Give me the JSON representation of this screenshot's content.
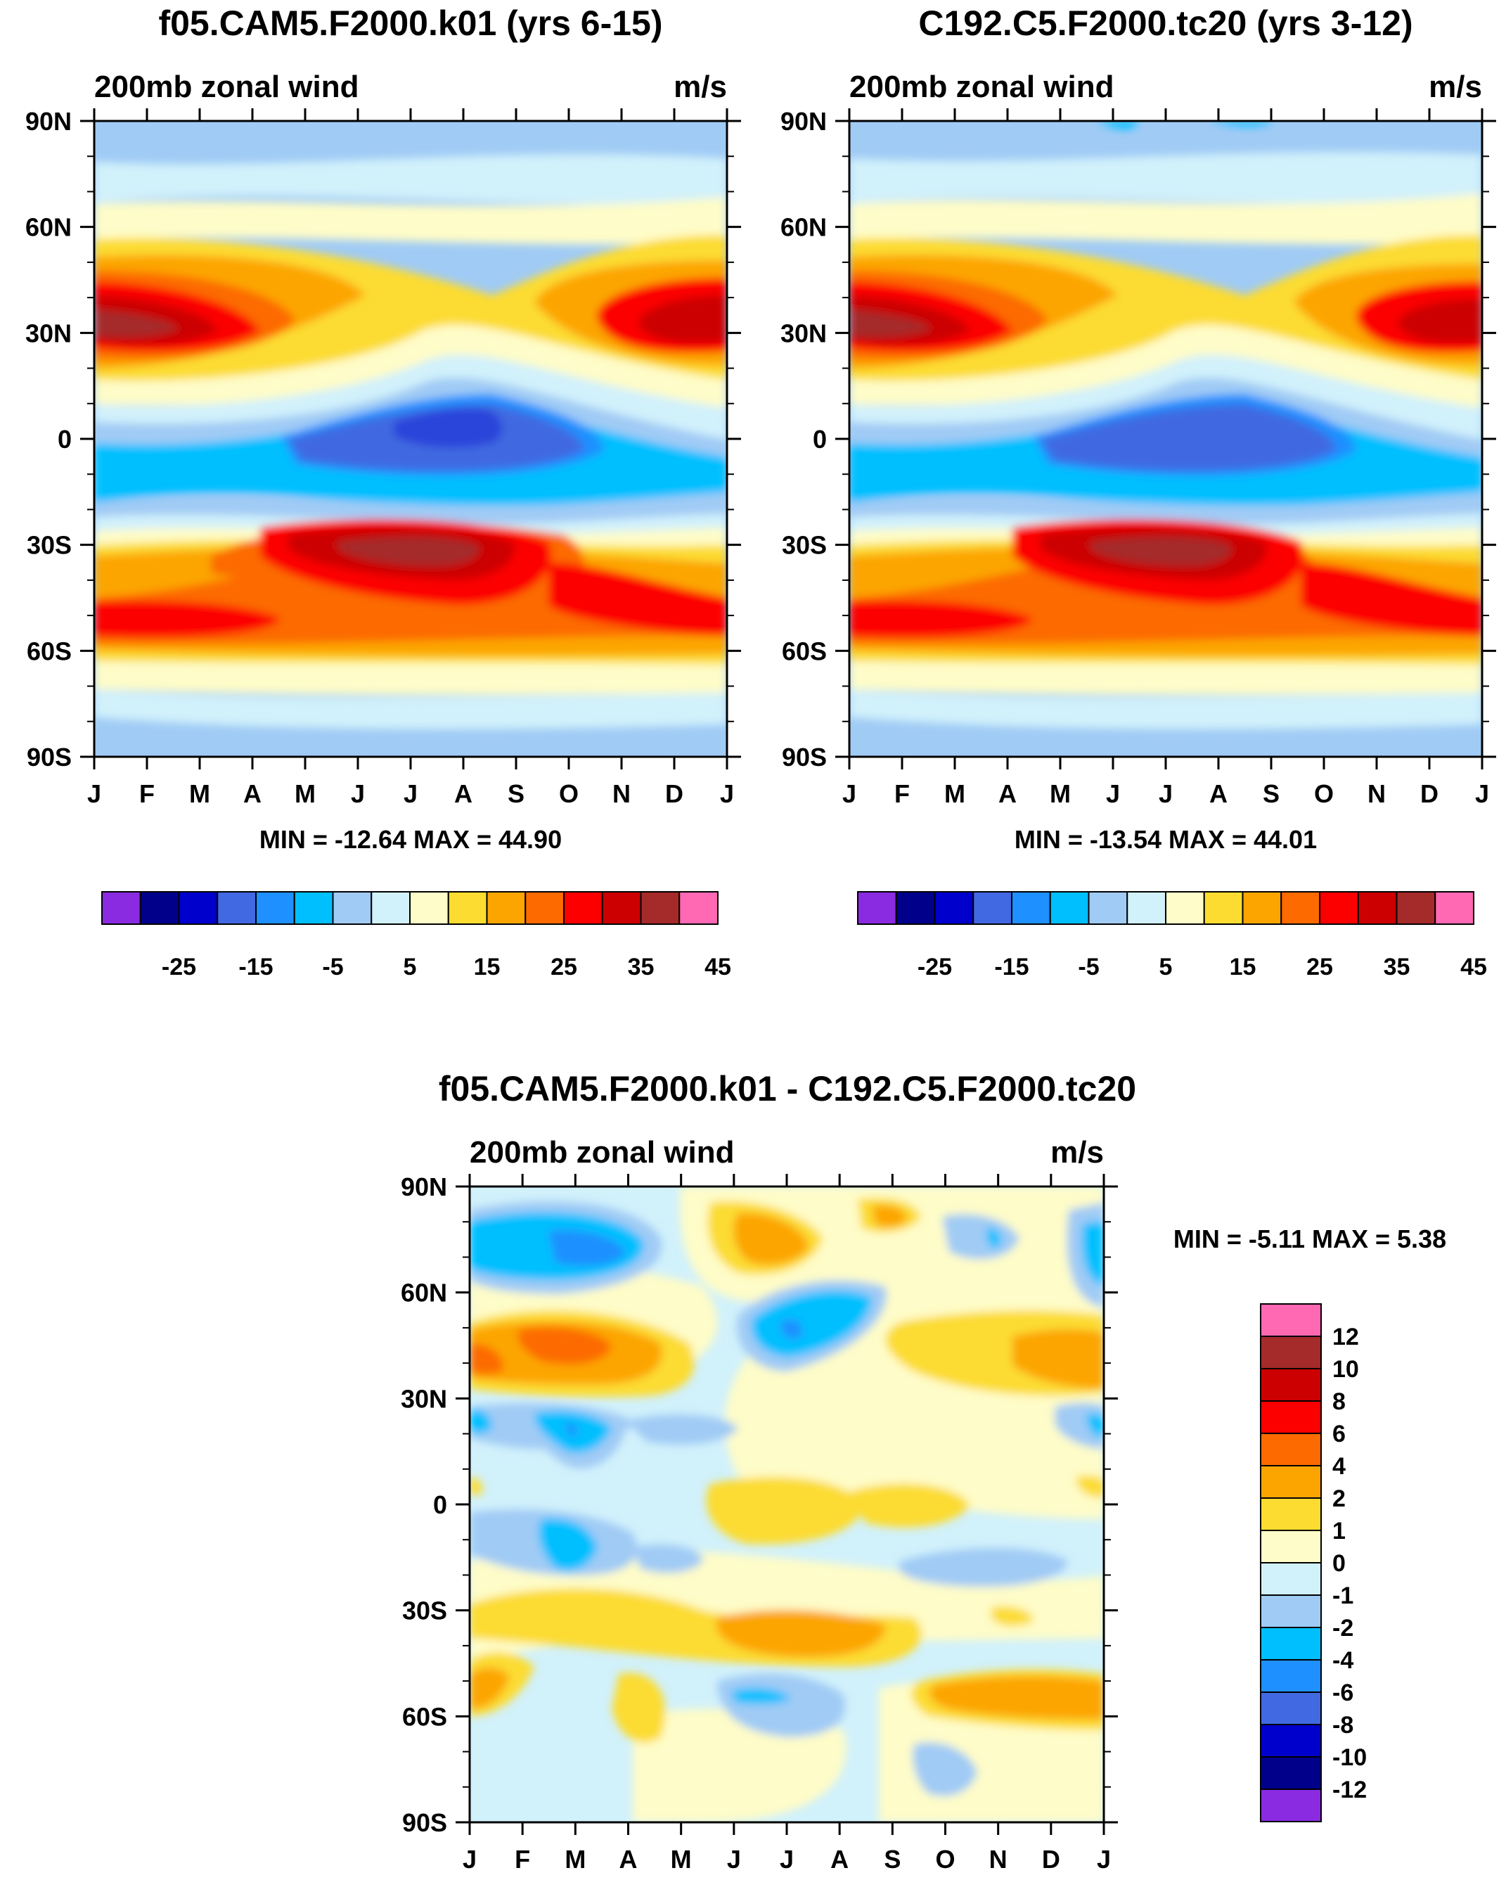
{
  "figure": {
    "panels": [
      {
        "id": "panel-a",
        "title": "f05.CAM5.F2000.k01 (yrs 6-15)",
        "field_label": "200mb zonal wind",
        "units": "m/s",
        "stats": "MIN = -12.64 MAX =  44.90"
      },
      {
        "id": "panel-b",
        "title": "C192.C5.F2000.tc20 (yrs 3-12)",
        "field_label": "200mb zonal wind",
        "units": "m/s",
        "stats": "MIN = -13.54 MAX =  44.01"
      },
      {
        "id": "panel-c",
        "title": "f05.CAM5.F2000.k01 - C192.C5.F2000.tc20",
        "field_label": "200mb zonal wind",
        "units": "m/s",
        "stats": "MIN =  -5.11 MAX =   5.38"
      }
    ]
  },
  "chart_data": [
    {
      "type": "heatmap",
      "title": "f05.CAM5.F2000.k01 (yrs 6-15)",
      "variable": "200mb zonal wind",
      "units": "m/s",
      "x_ticks": [
        "J",
        "F",
        "M",
        "A",
        "M",
        "J",
        "J",
        "A",
        "S",
        "O",
        "N",
        "D",
        "J"
      ],
      "y_ticks": [
        "90N",
        "60N",
        "30N",
        "0",
        "30S",
        "60S",
        "90S"
      ],
      "ylim": [
        -90,
        90
      ],
      "min": -12.64,
      "max": 44.9,
      "colorbar_labels": [
        "-25",
        "-15",
        "-5",
        "5",
        "15",
        "25",
        "35",
        "45"
      ],
      "colorbar_colors": [
        "#8a2be2",
        "#00008b",
        "#0000cd",
        "#4169e1",
        "#1e90ff",
        "#00bfff",
        "#a0cbf5",
        "#d1f1fb",
        "#fefcc8",
        "#fcdc30",
        "#fca500",
        "#fc6a00",
        "#fc0000",
        "#cc0000",
        "#a52a2a",
        "#ff69b4"
      ]
    },
    {
      "type": "heatmap",
      "title": "C192.C5.F2000.tc20 (yrs 3-12)",
      "variable": "200mb zonal wind",
      "units": "m/s",
      "x_ticks": [
        "J",
        "F",
        "M",
        "A",
        "M",
        "J",
        "J",
        "A",
        "S",
        "O",
        "N",
        "D",
        "J"
      ],
      "y_ticks": [
        "90N",
        "60N",
        "30N",
        "0",
        "30S",
        "60S",
        "90S"
      ],
      "ylim": [
        -90,
        90
      ],
      "min": -13.54,
      "max": 44.01,
      "colorbar_labels": [
        "-25",
        "-15",
        "-5",
        "5",
        "15",
        "25",
        "35",
        "45"
      ],
      "colorbar_colors": [
        "#8a2be2",
        "#00008b",
        "#0000cd",
        "#4169e1",
        "#1e90ff",
        "#00bfff",
        "#a0cbf5",
        "#d1f1fb",
        "#fefcc8",
        "#fcdc30",
        "#fca500",
        "#fc6a00",
        "#fc0000",
        "#cc0000",
        "#a52a2a",
        "#ff69b4"
      ]
    },
    {
      "type": "heatmap",
      "title": "f05.CAM5.F2000.k01 - C192.C5.F2000.tc20",
      "variable": "200mb zonal wind",
      "units": "m/s",
      "x_ticks": [
        "J",
        "F",
        "M",
        "A",
        "M",
        "J",
        "J",
        "A",
        "S",
        "O",
        "N",
        "D",
        "J"
      ],
      "y_ticks": [
        "90N",
        "60N",
        "30N",
        "0",
        "30S",
        "60S",
        "90S"
      ],
      "ylim": [
        -90,
        90
      ],
      "min": -5.11,
      "max": 5.38,
      "colorbar_labels": [
        "12",
        "10",
        "8",
        "6",
        "4",
        "2",
        "1",
        "0",
        "-1",
        "-2",
        "-4",
        "-6",
        "-8",
        "-10",
        "-12"
      ],
      "colorbar_colors": [
        "#ff69b4",
        "#a52a2a",
        "#cc0000",
        "#fc0000",
        "#fc6a00",
        "#fca500",
        "#fcdc30",
        "#fefcc8",
        "#d1f1fb",
        "#a0cbf5",
        "#00bfff",
        "#1e90ff",
        "#4169e1",
        "#0000cd",
        "#00008b",
        "#8a2be2"
      ]
    }
  ]
}
